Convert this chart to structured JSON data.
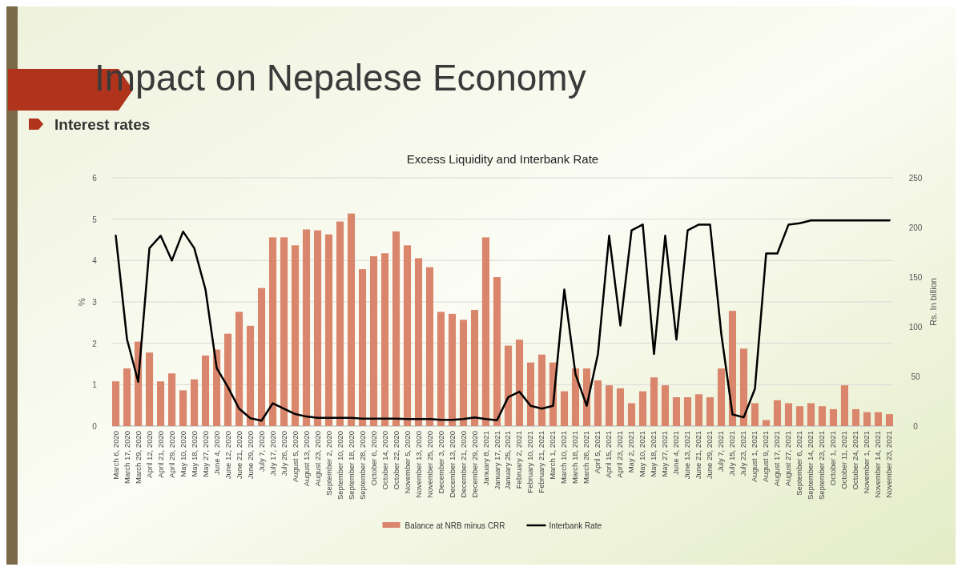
{
  "chart_data": {
    "type": "bar",
    "title": "Excess Liquidity and Interbank Rate",
    "annotations": [
      "Impact on Nepalese Economy",
      "Interest rates"
    ],
    "categories": [
      "March 6, 2020",
      "March 17, 2020",
      "March 29, 2020",
      "April 12, 2020",
      "April 21, 2020",
      "April 29, 2020",
      "May 10, 2020",
      "May 18, 2020",
      "May 27, 2020",
      "June 4, 2020",
      "June 12, 2020",
      "June 21, 2020",
      "June 29, 2020",
      "July 7, 2020",
      "July 17, 2020",
      "July 26, 2020",
      "August 5, 2020",
      "August 13, 2020",
      "August 23, 2020",
      "September 2, 2020",
      "September 10, 2020",
      "September 18, 2020",
      "September 28, 2020",
      "October 6, 2020",
      "October 14, 2020",
      "October 22, 2020",
      "November 5, 2020",
      "November 13, 2020",
      "November 25, 2020",
      "December 3, 2020",
      "December 13, 2020",
      "December 21, 2020",
      "December 29, 2020",
      "January 8, 2021",
      "January 17, 2021",
      "January 25, 2021",
      "February 2, 2021",
      "February 10, 2021",
      "February 21, 2021",
      "March 1, 2021",
      "March 10, 2021",
      "March 18, 2021",
      "March 26, 2021",
      "April 5, 2021",
      "April 15, 2021",
      "April 23, 2021",
      "May 2, 2021",
      "May 10, 2021",
      "May 18, 2021",
      "May 27, 2021",
      "June 4, 2021",
      "June 13, 2021",
      "June 21, 2021",
      "June 29, 2021",
      "July 7, 2021",
      "July 15, 2021",
      "July 23, 2021",
      "August 1, 2021",
      "August 9, 2021",
      "August 17, 2021",
      "August 27, 2021",
      "September 6, 2021",
      "September 14, 2021",
      "September 23, 2021",
      "October 1, 2021",
      "October 11, 2021",
      "October 24, 2021",
      "November 1, 2021",
      "November 14, 2021",
      "November 23, 2021"
    ],
    "series": [
      {
        "name": "Balance at NRB minus CRR",
        "axis": "y2",
        "color": "#d9866c",
        "values": [
          45,
          58,
          85,
          74,
          45,
          53,
          36,
          47,
          71,
          77,
          93,
          115,
          101,
          139,
          190,
          190,
          182,
          198,
          197,
          193,
          206,
          214,
          158,
          171,
          174,
          196,
          182,
          169,
          160,
          115,
          113,
          107,
          117,
          190,
          150,
          81,
          87,
          64,
          72,
          64,
          35,
          58,
          58,
          46,
          41,
          38,
          23,
          35,
          49,
          41,
          29,
          29,
          32,
          29,
          58,
          116,
          78,
          23,
          6,
          26,
          23,
          20,
          23,
          20,
          17,
          41,
          17,
          14,
          14,
          12
        ]
      },
      {
        "name": "Interbank Rate",
        "type": "line",
        "color": "#000000",
        "values": [
          4.6,
          2.1,
          1.07,
          4.3,
          4.6,
          4.0,
          4.7,
          4.3,
          3.3,
          1.4,
          0.94,
          0.42,
          0.19,
          0.13,
          0.55,
          0.42,
          0.29,
          0.23,
          0.2,
          0.2,
          0.2,
          0.2,
          0.18,
          0.18,
          0.18,
          0.18,
          0.17,
          0.17,
          0.17,
          0.15,
          0.15,
          0.17,
          0.21,
          0.17,
          0.14,
          0.7,
          0.83,
          0.49,
          0.42,
          0.49,
          3.3,
          1.25,
          0.49,
          1.74,
          4.6,
          2.43,
          4.73,
          4.87,
          1.74,
          4.6,
          2.09,
          4.73,
          4.87,
          4.87,
          2.23,
          0.28,
          0.21,
          0.9,
          4.17,
          4.17,
          4.87,
          4.9,
          4.97,
          4.97,
          4.97,
          4.97,
          4.97,
          4.97,
          4.97,
          4.97
        ]
      }
    ],
    "ylabel": "%",
    "y2label": "Rs. In billion",
    "ylim": [
      0,
      6
    ],
    "yticks": [
      0,
      1,
      2,
      3,
      4,
      5,
      6
    ],
    "y2lim": [
      0,
      250
    ],
    "y2ticks": [
      0,
      50,
      100,
      150,
      200,
      250
    ],
    "grid": "y",
    "legend": "bottom"
  }
}
